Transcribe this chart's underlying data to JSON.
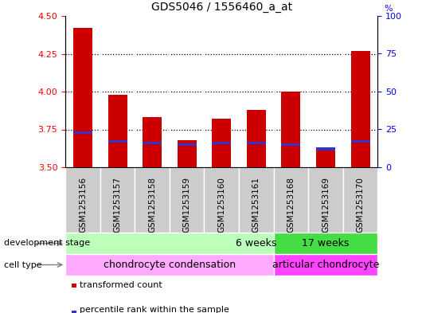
{
  "title": "GDS5046 / 1556460_a_at",
  "samples": [
    "GSM1253156",
    "GSM1253157",
    "GSM1253158",
    "GSM1253159",
    "GSM1253160",
    "GSM1253161",
    "GSM1253168",
    "GSM1253169",
    "GSM1253170"
  ],
  "transformed_count": [
    4.42,
    3.98,
    3.83,
    3.68,
    3.82,
    3.88,
    4.0,
    3.62,
    4.27
  ],
  "blue_bar_tops": [
    3.728,
    3.672,
    3.66,
    3.65,
    3.66,
    3.66,
    3.65,
    3.622,
    3.672
  ],
  "blue_bar_height": 0.018,
  "ylim": [
    3.5,
    4.5
  ],
  "y_ticks": [
    3.5,
    3.75,
    4.0,
    4.25,
    4.5
  ],
  "y_right_ticks": [
    0,
    25,
    50,
    75,
    100
  ],
  "bar_bottom": 3.5,
  "bar_width": 0.55,
  "red_color": "#cc0000",
  "blue_color": "#3333cc",
  "group1_label": "6 weeks",
  "group2_label": "17 weeks",
  "group1_color": "#bbffbb",
  "group2_color": "#44dd44",
  "cell1_label": "chondrocyte condensation",
  "cell2_label": "articular chondrocyte",
  "cell1_color": "#ffaaff",
  "cell2_color": "#ff44ff",
  "group1_count": 6,
  "group2_count": 3,
  "legend1": "transformed count",
  "legend2": "percentile rank within the sample",
  "dev_stage_label": "development stage",
  "cell_type_label": "cell type",
  "grid_dotted_at": [
    3.75,
    4.0,
    4.25
  ],
  "sample_bg_color": "#cccccc",
  "separator_color": "#ffffff",
  "right_y_label": "%"
}
